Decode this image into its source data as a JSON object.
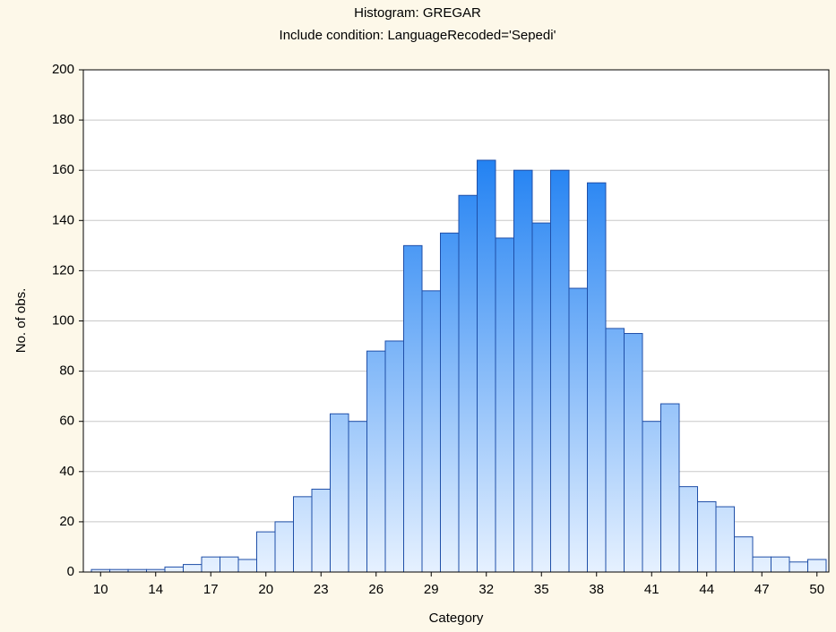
{
  "chart_data": {
    "type": "histogram",
    "title": "Histogram: GREGAR",
    "subtitle": "Include condition: LanguageRecoded='Sepedi'",
    "x_label": "Category",
    "y_label": "No. of obs.",
    "categories": [
      "10",
      null,
      null,
      "14",
      null,
      null,
      "17",
      null,
      null,
      "20",
      null,
      null,
      "23",
      null,
      null,
      "26",
      null,
      null,
      "29",
      null,
      null,
      "32",
      null,
      null,
      "35",
      null,
      null,
      "38",
      null,
      null,
      "41",
      null,
      null,
      "44",
      null,
      null,
      "47",
      null,
      null,
      "50"
    ],
    "values": [
      1,
      1,
      1,
      1,
      2,
      3,
      6,
      6,
      5,
      16,
      20,
      30,
      33,
      63,
      60,
      88,
      92,
      130,
      112,
      135,
      150,
      164,
      133,
      160,
      139,
      160,
      113,
      155,
      97,
      95,
      60,
      67,
      34,
      28,
      26,
      14,
      6,
      6,
      4,
      5
    ],
    "color": "#1f80f2",
    "edge_color": "#1f4fa8",
    "ylim": [
      0,
      200
    ],
    "yticks": [
      0,
      20,
      40,
      60,
      80,
      100,
      120,
      140,
      160,
      180,
      200
    ],
    "grid": true
  }
}
